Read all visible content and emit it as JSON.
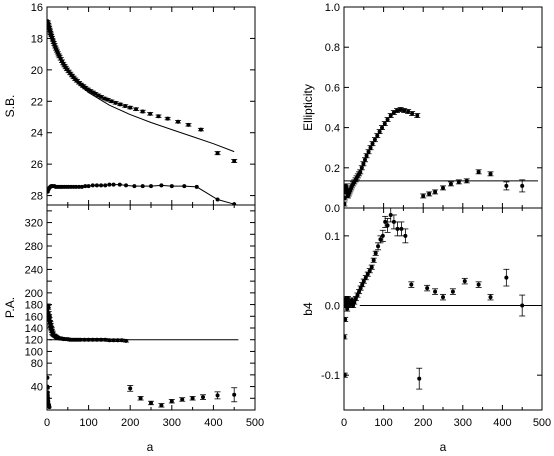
{
  "chart_data": [
    {
      "id": "sb",
      "type": "scatter",
      "ylabel": "S.B.",
      "xlim": [
        0,
        500
      ],
      "ylim": [
        28.6,
        16
      ],
      "yticks": [
        16,
        18,
        20,
        22,
        24,
        26,
        28
      ],
      "ytick_labels": [
        "16",
        "18",
        "20",
        "22",
        "24",
        "26",
        "28"
      ],
      "series": [
        {
          "style": "points_errorbars",
          "x": [
            1,
            2,
            3,
            4,
            5,
            6,
            7,
            8,
            9,
            10,
            12,
            14,
            16,
            18,
            20,
            22,
            24,
            26,
            28,
            30,
            33,
            36,
            39,
            42,
            45,
            48,
            52,
            56,
            60,
            64,
            68,
            72,
            77,
            82,
            87,
            92,
            98,
            104,
            110,
            116,
            123,
            130,
            138,
            146,
            155,
            165,
            176,
            188,
            200,
            214,
            230,
            248,
            268,
            290,
            315,
            340,
            370,
            410,
            450
          ],
          "y": [
            16.9,
            17.0,
            17.1,
            17.2,
            17.3,
            17.4,
            17.5,
            17.6,
            17.7,
            17.8,
            17.95,
            18.1,
            18.25,
            18.4,
            18.55,
            18.68,
            18.8,
            18.92,
            19.05,
            19.15,
            19.3,
            19.45,
            19.6,
            19.73,
            19.85,
            19.97,
            20.1,
            20.23,
            20.36,
            20.48,
            20.6,
            20.7,
            20.82,
            20.93,
            21.03,
            21.13,
            21.24,
            21.34,
            21.43,
            21.52,
            21.62,
            21.72,
            21.82,
            21.9,
            22.0,
            22.1,
            22.2,
            22.3,
            22.4,
            22.5,
            22.65,
            22.8,
            22.95,
            23.1,
            23.3,
            23.5,
            23.8,
            25.3,
            25.8
          ],
          "err": [
            0.05,
            0.05,
            0.05,
            0.05,
            0.05,
            0.05,
            0.05,
            0.05,
            0.05,
            0.05,
            0.06,
            0.06,
            0.06,
            0.06,
            0.06,
            0.07,
            0.07,
            0.07,
            0.07,
            0.08,
            0.08,
            0.08,
            0.08,
            0.08,
            0.08,
            0.08,
            0.08,
            0.08,
            0.08,
            0.08,
            0.08,
            0.08,
            0.08,
            0.08,
            0.08,
            0.08,
            0.08,
            0.08,
            0.08,
            0.08,
            0.08,
            0.08,
            0.08,
            0.08,
            0.08,
            0.08,
            0.08,
            0.08,
            0.08,
            0.08,
            0.08,
            0.08,
            0.08,
            0.08,
            0.08,
            0.08,
            0.08,
            0.1,
            0.1
          ]
        },
        {
          "style": "line",
          "x": [
            2,
            10,
            20,
            40,
            60,
            80,
            100,
            150,
            200,
            250,
            300,
            350,
            400,
            450
          ],
          "y": [
            16.9,
            17.8,
            18.7,
            19.75,
            20.45,
            21.0,
            21.45,
            22.25,
            22.85,
            23.35,
            23.8,
            24.25,
            24.7,
            25.2
          ]
        },
        {
          "style": "line_points",
          "x": [
            2,
            4,
            6,
            8,
            10,
            12,
            15,
            18,
            21,
            25,
            29,
            33,
            37,
            42,
            47,
            52,
            58,
            64,
            70,
            77,
            84,
            92,
            100,
            110,
            120,
            130,
            140,
            150,
            160,
            175,
            190,
            210,
            230,
            250,
            275,
            300,
            330,
            360,
            410,
            450
          ],
          "y": [
            27.75,
            27.6,
            27.5,
            27.45,
            27.4,
            27.4,
            27.4,
            27.4,
            27.45,
            27.45,
            27.45,
            27.45,
            27.45,
            27.45,
            27.45,
            27.45,
            27.45,
            27.45,
            27.45,
            27.45,
            27.45,
            27.4,
            27.4,
            27.35,
            27.35,
            27.35,
            27.35,
            27.3,
            27.3,
            27.3,
            27.35,
            27.4,
            27.4,
            27.4,
            27.35,
            27.4,
            27.4,
            27.45,
            28.25,
            28.55
          ]
        }
      ]
    },
    {
      "id": "ellipticity",
      "type": "scatter",
      "ylabel": "Ellipticity",
      "xlim": [
        0,
        500
      ],
      "ylim": [
        0,
        1.0
      ],
      "yticks": [
        0,
        0.2,
        0.4,
        0.6,
        0.8,
        1.0
      ],
      "ytick_labels": [
        "0.0",
        "0.2",
        "0.4",
        "0.6",
        "0.8",
        "1.0"
      ],
      "series": [
        {
          "style": "points_errorbars",
          "x": [
            1,
            2,
            3,
            4,
            5,
            6,
            7,
            8,
            9,
            10,
            12,
            14,
            16,
            18,
            20,
            23,
            26,
            29,
            32,
            35,
            38,
            41,
            45,
            49,
            53,
            57,
            62,
            67,
            72,
            78,
            84,
            90,
            96,
            103,
            110,
            118,
            126,
            134,
            143,
            152,
            162,
            172,
            185,
            200,
            215,
            230,
            250,
            270,
            290,
            310,
            340,
            370,
            410,
            450
          ],
          "y": [
            0.02,
            0.05,
            0.08,
            0.1,
            0.11,
            0.1,
            0.09,
            0.08,
            0.07,
            0.06,
            0.07,
            0.08,
            0.09,
            0.1,
            0.11,
            0.12,
            0.13,
            0.14,
            0.15,
            0.16,
            0.17,
            0.18,
            0.2,
            0.22,
            0.24,
            0.26,
            0.28,
            0.3,
            0.32,
            0.34,
            0.36,
            0.38,
            0.4,
            0.42,
            0.44,
            0.46,
            0.475,
            0.485,
            0.49,
            0.485,
            0.48,
            0.47,
            0.46,
            0.06,
            0.07,
            0.08,
            0.1,
            0.12,
            0.13,
            0.135,
            0.18,
            0.17,
            0.11,
            0.11
          ],
          "err": [
            0.01,
            0.01,
            0.01,
            0.01,
            0.01,
            0.01,
            0.01,
            0.01,
            0.01,
            0.01,
            0.01,
            0.01,
            0.01,
            0.01,
            0.01,
            0.01,
            0.01,
            0.01,
            0.01,
            0.01,
            0.01,
            0.01,
            0.01,
            0.01,
            0.01,
            0.01,
            0.01,
            0.01,
            0.01,
            0.01,
            0.01,
            0.01,
            0.01,
            0.01,
            0.01,
            0.01,
            0.01,
            0.01,
            0.01,
            0.01,
            0.01,
            0.01,
            0.01,
            0.01,
            0.01,
            0.01,
            0.01,
            0.01,
            0.01,
            0.01,
            0.01,
            0.01,
            0.02,
            0.03
          ]
        },
        {
          "style": "line",
          "x": [
            0,
            490
          ],
          "y": [
            0.135,
            0.135
          ]
        }
      ]
    },
    {
      "id": "pa",
      "type": "scatter",
      "ylabel": "P.A.",
      "xlim": [
        0,
        500
      ],
      "ylim": [
        0,
        350
      ],
      "yticks": [
        20,
        40,
        60,
        80,
        100,
        120,
        140,
        160,
        180,
        200,
        220,
        240,
        260,
        280,
        300,
        320,
        340
      ],
      "ytick_labels": [
        "",
        "40",
        "",
        "80",
        "100",
        "120",
        "140",
        "160",
        "180",
        "200",
        "",
        "240",
        "",
        "280",
        "",
        "320",
        ""
      ],
      "series": [
        {
          "style": "points_errorbars",
          "x": [
            1,
            2,
            3,
            4,
            5,
            6,
            7,
            8,
            9,
            10,
            11,
            12,
            13,
            14,
            16,
            18,
            20,
            22,
            24,
            26,
            28,
            30,
            33,
            36,
            40,
            45,
            50,
            55,
            60,
            65,
            70,
            75,
            80,
            90,
            100,
            110,
            120,
            130,
            140,
            150,
            160,
            170,
            180,
            190
          ],
          "y": [
            170,
            178,
            175,
            165,
            160,
            155,
            150,
            148,
            145,
            140,
            138,
            135,
            132,
            130,
            128,
            127,
            126,
            125,
            124,
            123,
            123,
            122,
            122,
            122,
            121,
            121,
            121,
            120,
            120,
            120,
            120,
            120,
            120,
            120,
            120,
            120,
            120,
            120,
            120,
            119,
            119,
            119,
            119,
            118
          ],
          "err": [
            3,
            3,
            3,
            3,
            3,
            3,
            3,
            3,
            3,
            3,
            3,
            3,
            3,
            3,
            2,
            2,
            2,
            2,
            2,
            2,
            2,
            2,
            2,
            2,
            2,
            2,
            2,
            2,
            2,
            2,
            2,
            2,
            2,
            2,
            2,
            2,
            2,
            2,
            2,
            2,
            2,
            2,
            2,
            2
          ]
        },
        {
          "style": "points",
          "x": [
            1,
            1,
            2,
            2,
            2,
            3,
            3,
            4,
            5,
            6
          ],
          "y": [
            40,
            55,
            38,
            30,
            25,
            20,
            15,
            10,
            8,
            5
          ]
        },
        {
          "style": "points_errorbars",
          "x": [
            200,
            225,
            250,
            275,
            300,
            325,
            350,
            375,
            410,
            450
          ],
          "y": [
            37,
            20,
            12,
            8,
            15,
            18,
            20,
            22,
            25,
            26
          ],
          "err": [
            5,
            3,
            3,
            3,
            3,
            3,
            3,
            4,
            6,
            12
          ]
        },
        {
          "style": "line",
          "x": [
            5,
            460
          ],
          "y": [
            120,
            120
          ]
        }
      ]
    },
    {
      "id": "b4",
      "type": "scatter",
      "ylabel": "b4",
      "xlim": [
        0,
        500
      ],
      "ylim": [
        -0.15,
        0.14
      ],
      "yticks": [
        -0.1,
        0.0,
        0.1
      ],
      "ytick_labels": [
        "-0.1",
        "0.0",
        "0.1"
      ],
      "series": [
        {
          "style": "points_errorbars",
          "x": [
            1,
            2,
            3,
            4,
            5,
            6,
            7,
            8,
            9,
            10,
            12,
            14,
            16,
            18,
            20,
            23,
            26,
            30,
            34,
            38,
            42,
            46,
            50,
            55,
            60,
            65,
            70,
            75,
            80,
            86,
            92,
            98,
            104,
            110,
            118,
            126,
            135,
            145,
            155,
            170,
            190,
            210,
            230,
            250,
            275,
            305,
            340,
            370,
            410,
            450
          ],
          "y": [
            -0.045,
            -0.1,
            -0.02,
            0.0,
            0.005,
            0.01,
            0.0,
            -0.005,
            0.005,
            0.01,
            0.0,
            0.0,
            0.002,
            0.005,
            0.008,
            0.0,
            0.005,
            0.01,
            0.015,
            0.02,
            0.025,
            0.03,
            0.035,
            0.04,
            0.045,
            0.05,
            0.055,
            0.065,
            0.075,
            0.085,
            0.095,
            0.1,
            0.12,
            0.115,
            0.13,
            0.12,
            0.11,
            0.11,
            0.1,
            0.03,
            -0.105,
            0.025,
            0.02,
            0.012,
            0.02,
            0.035,
            0.03,
            0.012,
            0.04,
            0.0
          ],
          "err": [
            0.003,
            0.003,
            0.003,
            0.003,
            0.003,
            0.003,
            0.003,
            0.003,
            0.003,
            0.003,
            0.003,
            0.003,
            0.003,
            0.003,
            0.003,
            0.003,
            0.003,
            0.003,
            0.003,
            0.003,
            0.003,
            0.003,
            0.003,
            0.003,
            0.003,
            0.003,
            0.003,
            0.003,
            0.003,
            0.005,
            0.005,
            0.008,
            0.008,
            0.01,
            0.01,
            0.01,
            0.01,
            0.01,
            0.01,
            0.004,
            0.015,
            0.004,
            0.004,
            0.004,
            0.004,
            0.004,
            0.004,
            0.004,
            0.012,
            0.015
          ]
        },
        {
          "style": "line",
          "x": [
            40,
            490
          ],
          "y": [
            0,
            0
          ]
        }
      ]
    }
  ],
  "xaxis": {
    "ticks": [
      0,
      100,
      200,
      300,
      400,
      500
    ],
    "tick_labels": [
      "0",
      "100",
      "200",
      "300",
      "400",
      "500"
    ],
    "label": "a"
  }
}
